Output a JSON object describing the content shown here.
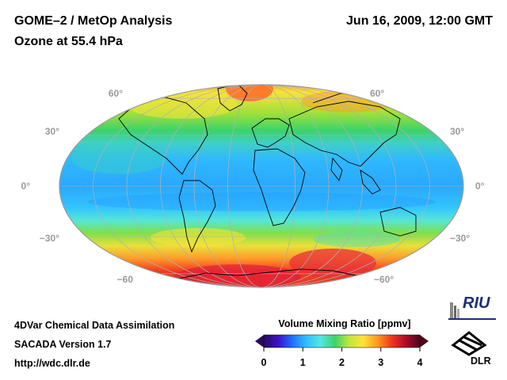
{
  "header": {
    "title_line1": "GOME–2 / MetOp Analysis",
    "title_line2": "Ozone at 55.4 hPa",
    "datetime": "Jun 16, 2009, 12:00 GMT"
  },
  "map": {
    "projection": "mollweide",
    "lat_labels_left": [
      "60°",
      "30°",
      "0°",
      "−30°",
      "−60"
    ],
    "lat_labels_right": [
      "60°",
      "30°",
      "0°",
      "−30°",
      "−60°"
    ],
    "lat_values": [
      60,
      30,
      0,
      -30,
      -60
    ]
  },
  "colorbar": {
    "title": "Volume Mixing Ratio [ppmv]",
    "ticks": [
      "0",
      "1",
      "2",
      "3",
      "4"
    ],
    "min": 0,
    "max": 4,
    "colors": [
      "#2b0a5e",
      "#3a10c8",
      "#1f6fff",
      "#2fc0ff",
      "#55e6e6",
      "#3cd36a",
      "#bfe63a",
      "#ffe23a",
      "#ff9a1e",
      "#f0381e",
      "#b00a2a",
      "#4a0a1a"
    ]
  },
  "footer": {
    "line1": "4DVar Chemical Data Assimilation",
    "line2": "SACADA Version 1.7",
    "line3": "http://wdc.dlr.de"
  },
  "logos": {
    "riu": "RIU",
    "dlr": "DLR"
  }
}
